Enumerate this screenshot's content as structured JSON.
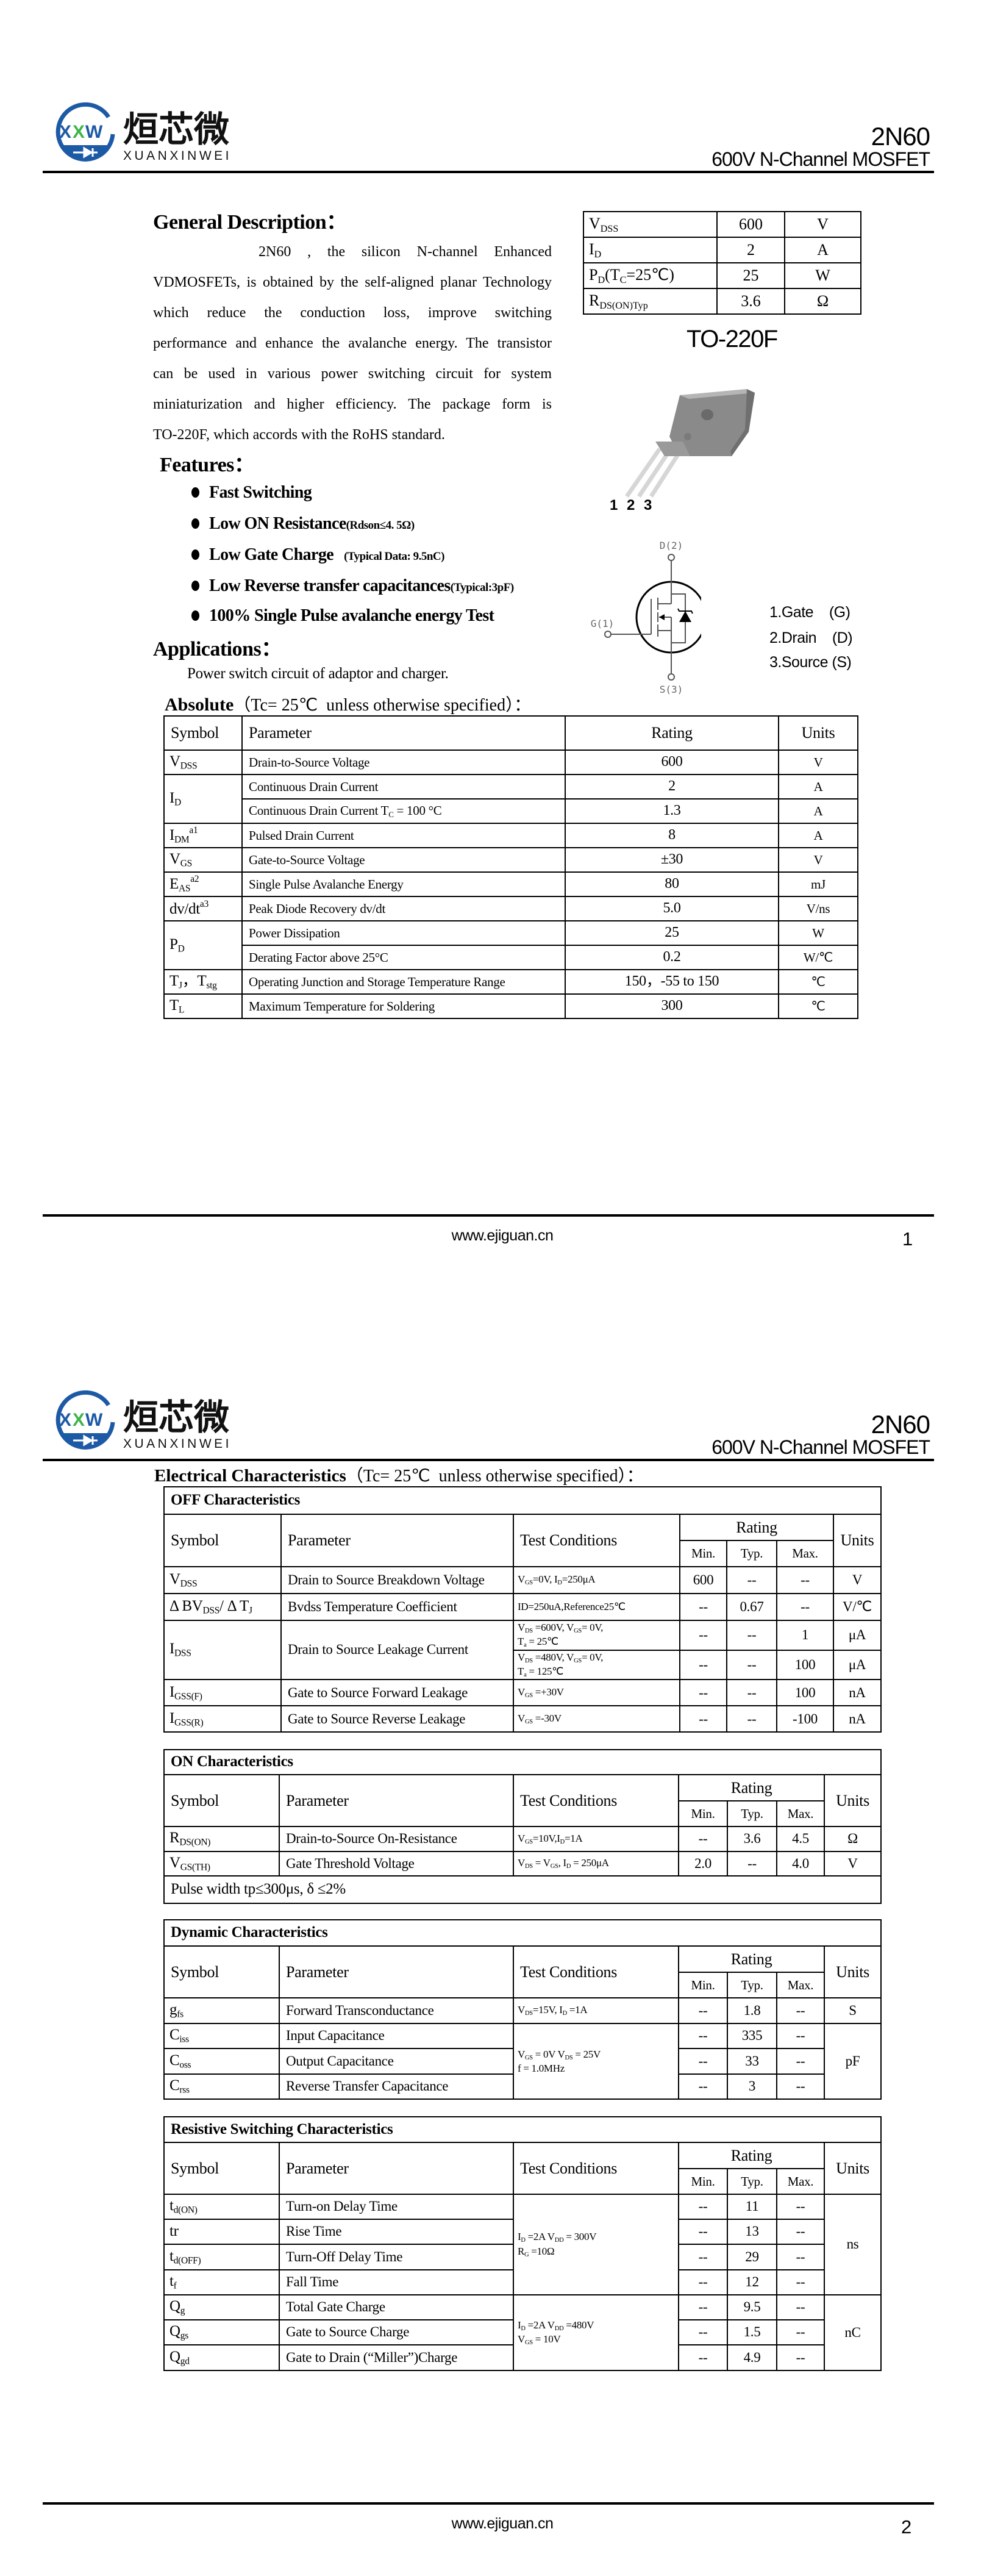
{
  "colors": {
    "brand_blue": "#1d5aa6",
    "brand_green": "#3cb54a",
    "package_grey": "#8a8a8a"
  },
  "header": {
    "logo_mark": [
      "X",
      "X",
      "W"
    ],
    "logo_cn": "烜芯微",
    "logo_en": "XUANXINWEI",
    "part": "2N60",
    "subtitle": "600V N-Channel MOSFET"
  },
  "page1": {
    "general": {
      "title": "General Description：",
      "lines": [
        "2N60  ,  the  silicon  N-channel  Enhanced",
        "VDMOSFETs, is obtained by the self-aligned planar Technology",
        "which reduce the conduction loss, improve switching",
        "performance and enhance the avalanche energy. The transistor",
        "can be used in various power switching circuit for system",
        "miniaturization and higher efficiency. The package form is",
        "TO-220F, which accords with the RoHS standard."
      ]
    },
    "spec": [
      {
        "sym": "V",
        "sub": "DSS",
        "tail": "",
        "sub2": "",
        "tail2": "",
        "value": "600",
        "unit": "V"
      },
      {
        "sym": "I",
        "sub": "D",
        "tail": "",
        "sub2": "",
        "tail2": "",
        "value": "2",
        "unit": "A"
      },
      {
        "sym": "P",
        "sub": "D",
        "tail": "(T",
        "sub2": "C",
        "tail2": "=25℃)",
        "value": "25",
        "unit": "W"
      },
      {
        "sym": "R",
        "sub": "DS(ON)Typ",
        "tail": "",
        "sub2": "",
        "tail2": "",
        "value": "3.6",
        "unit": "Ω"
      }
    ],
    "package": {
      "name": "TO-220F",
      "pins": "1 2 3"
    },
    "symbol": {
      "drain": "D(2)",
      "gate": "G(1)",
      "source": "S(3)"
    },
    "pin_legend": [
      "1.Gate    (G)",
      "2.Drain    (D)",
      "3.Source (S)"
    ],
    "features": {
      "title": "Features：",
      "items": [
        {
          "main": "Fast Switching",
          "note": ""
        },
        {
          "main": "Low ON Resistance",
          "note": "(Rdson≤4. 5Ω)"
        },
        {
          "main": "Low Gate Charge",
          "note": "    (Typical Data: 9.5nC)"
        },
        {
          "main": "Low Reverse transfer capacitances",
          "note": "(Typical:3pF)"
        },
        {
          "main": "100% Single Pulse avalanche energy Test",
          "note": ""
        }
      ]
    },
    "applications": {
      "title": "Applications：",
      "text": "Power switch circuit of adaptor and charger."
    },
    "absolute": {
      "title_bold": "Absolute",
      "title_rest": "（Tc= 25℃  unless otherwise specified）：",
      "headers": [
        "Symbol",
        "Parameter",
        "Rating",
        "Units"
      ],
      "rows": [
        [
          [
            {
              "t": "V"
            },
            {
              "t": "DSS",
              "sub": 1
            }
          ],
          "Drain-to-Source Voltage",
          "600",
          "V"
        ],
        [
          {
            "v": [
              {
                "t": "I"
              },
              {
                "t": "D",
                "sub": 1
              }
            ],
            "rs": 2
          },
          "Continuous Drain Current",
          "2",
          "A"
        ],
        [
          [
            {
              "t": "Continuous Drain Current T"
            },
            {
              "t": "C",
              "sub": 1
            },
            {
              "t": " = 100 °C"
            }
          ],
          "1.3",
          "A"
        ],
        [
          [
            {
              "t": "I"
            },
            {
              "t": "DM",
              "sub": 1
            },
            {
              "t": "a1",
              "sup": 1
            }
          ],
          "Pulsed Drain Current",
          "8",
          "A"
        ],
        [
          [
            {
              "t": "V"
            },
            {
              "t": "GS",
              "sub": 1
            }
          ],
          "Gate-to-Source Voltage",
          "±30",
          "V"
        ],
        [
          [
            {
              "t": "E"
            },
            {
              "t": "AS",
              "sub": 1
            },
            {
              "t": "a2",
              "sup": 1
            }
          ],
          "Single Pulse Avalanche Energy",
          "80",
          "mJ"
        ],
        [
          [
            {
              "t": "dv/dt"
            },
            {
              "t": "a3",
              "sup": 1
            }
          ],
          "Peak Diode Recovery dv/dt",
          "5.0",
          "V/ns"
        ],
        [
          {
            "v": [
              {
                "t": "P"
              },
              {
                "t": "D",
                "sub": 1
              }
            ],
            "rs": 2
          },
          "Power Dissipation",
          "25",
          "W"
        ],
        [
          "Derating Factor above 25°C",
          "0.2",
          "W/℃"
        ],
        [
          [
            {
              "t": "T"
            },
            {
              "t": "J",
              "sub": 1
            },
            {
              "t": "，T"
            },
            {
              "t": "stg",
              "sub": 1
            }
          ],
          "Operating Junction and Storage Temperature Range",
          "150，-55 to 150",
          "℃"
        ],
        [
          [
            {
              "t": "T"
            },
            {
              "t": "L",
              "sub": 1
            }
          ],
          "Maximum Temperature for Soldering",
          "300",
          "℃"
        ]
      ]
    },
    "footer": {
      "url": "www.ejiguan.cn",
      "page": "1"
    }
  },
  "page2": {
    "title_bold": "Electrical Characteristics",
    "title_rest": "（Tc= 25℃  unless otherwise specified）：",
    "tables": [
      {
        "title": "OFF Characteristics",
        "headers": {
          "symbol": "Symbol",
          "parameter": "Parameter",
          "test": "Test Conditions",
          "rating": "Rating",
          "min": "Min.",
          "typ": "Typ.",
          "max": "Max.",
          "unit": "Units"
        },
        "rows": [
          [
            [
              {
                "t": "V"
              },
              {
                "t": "DSS",
                "sub": 1
              }
            ],
            "Drain to Source Breakdown Voltage",
            [
              {
                "t": "V"
              },
              {
                "t": "GS",
                "sub": 1
              },
              {
                "t": "=0V, I"
              },
              {
                "t": "D",
                "sub": 1
              },
              {
                "t": "=250μA"
              }
            ],
            "600",
            "--",
            "--",
            "V"
          ],
          [
            [
              {
                "t": "Δ BV"
              },
              {
                "t": "DSS",
                "sub": 1
              },
              {
                "t": "/ Δ T"
              },
              {
                "t": "J",
                "sub": 1
              }
            ],
            "Bvdss Temperature Coefficient",
            "ID=250uA,Reference25℃",
            "--",
            "0.67",
            "--",
            "V/℃"
          ],
          [
            {
              "v": [
                {
                  "t": "I"
                },
                {
                  "t": "DSS",
                  "sub": 1
                }
              ],
              "rs": 2
            },
            {
              "v": "Drain to Source Leakage Current",
              "rs": 2
            },
            [
              {
                "t": "V"
              },
              {
                "t": "DS",
                "sub": 1
              },
              {
                "t": " =600V, V"
              },
              {
                "t": "GS",
                "sub": 1
              },
              {
                "t": "= 0V,"
              },
              {
                "br": 1
              },
              {
                "t": "T"
              },
              {
                "t": "a",
                "sub": 1
              },
              {
                "t": " = 25℃"
              }
            ],
            "--",
            "--",
            "1",
            "μA"
          ],
          [
            [
              {
                "t": "V"
              },
              {
                "t": "DS",
                "sub": 1
              },
              {
                "t": " =480V, V"
              },
              {
                "t": "GS",
                "sub": 1
              },
              {
                "t": "= 0V,"
              },
              {
                "br": 1
              },
              {
                "t": "T"
              },
              {
                "t": "a",
                "sub": 1
              },
              {
                "t": " = 125℃"
              }
            ],
            "--",
            "--",
            "100",
            "μA"
          ],
          [
            [
              {
                "t": "I"
              },
              {
                "t": "GSS(F)",
                "sub": 1
              }
            ],
            "Gate to Source Forward Leakage",
            [
              {
                "t": "V"
              },
              {
                "t": "GS",
                "sub": 1
              },
              {
                "t": " =+30V"
              }
            ],
            "--",
            "--",
            "100",
            "nA"
          ],
          [
            [
              {
                "t": "I"
              },
              {
                "t": "GSS(R)",
                "sub": 1
              }
            ],
            "Gate to Source Reverse Leakage",
            [
              {
                "t": "V"
              },
              {
                "t": "GS",
                "sub": 1
              },
              {
                "t": " =-30V"
              }
            ],
            "--",
            "--",
            "-100",
            "nA"
          ]
        ]
      },
      {
        "title": "ON Characteristics",
        "headers": {
          "symbol": "Symbol",
          "parameter": "Parameter",
          "test": "Test Conditions",
          "rating": "Rating",
          "min": "Min.",
          "typ": "Typ.",
          "max": "Max.",
          "unit": "Units"
        },
        "rows": [
          [
            [
              {
                "t": "R"
              },
              {
                "t": "DS(ON)",
                "sub": 1
              }
            ],
            "Drain-to-Source On-Resistance",
            [
              {
                "t": "V"
              },
              {
                "t": "GS",
                "sub": 1
              },
              {
                "t": "=10V,I"
              },
              {
                "t": "D",
                "sub": 1
              },
              {
                "t": "=1A"
              }
            ],
            "--",
            "3.6",
            "4.5",
            "Ω"
          ],
          [
            [
              {
                "t": "V"
              },
              {
                "t": "GS(TH)",
                "sub": 1
              }
            ],
            "Gate Threshold Voltage",
            [
              {
                "t": "V"
              },
              {
                "t": "DS",
                "sub": 1
              },
              {
                "t": " = V"
              },
              {
                "t": "GS",
                "sub": 1
              },
              {
                "t": ", I"
              },
              {
                "t": "D",
                "sub": 1
              },
              {
                "t": " = 250μA"
              }
            ],
            "2.0",
            "--",
            "4.0",
            "V"
          ],
          [
            {
              "v": "Pulse width tp≤300μs, δ ≤2%",
              "cs": 7,
              "note": 1
            }
          ]
        ]
      },
      {
        "title": "Dynamic Characteristics",
        "headers": {
          "symbol": "Symbol",
          "parameter": "Parameter",
          "test": "Test Conditions",
          "rating": "Rating",
          "min": "Min.",
          "typ": "Typ.",
          "max": "Max.",
          "unit": "Units"
        },
        "rows": [
          [
            [
              {
                "t": "g"
              },
              {
                "t": "fs",
                "sub": 1
              }
            ],
            "Forward Transconductance",
            [
              {
                "t": "V"
              },
              {
                "t": "DS",
                "sub": 1
              },
              {
                "t": "=15V, I"
              },
              {
                "t": "D",
                "sub": 1
              },
              {
                "t": " =1A"
              }
            ],
            "--",
            "1.8",
            "--",
            "S"
          ],
          [
            [
              {
                "t": "C"
              },
              {
                "t": "iss",
                "sub": 1
              }
            ],
            "Input Capacitance",
            {
              "v": [
                {
                  "t": "V"
                },
                {
                  "t": "GS",
                  "sub": 1
                },
                {
                  "t": " = 0V V"
                },
                {
                  "t": "DS",
                  "sub": 1
                },
                {
                  "t": " = 25V"
                },
                {
                  "br": 1
                },
                {
                  "t": "f = 1.0MHz"
                }
              ],
              "rs": 3
            },
            "--",
            "335",
            "--",
            {
              "v": "pF",
              "rs": 3
            }
          ],
          [
            [
              {
                "t": "C"
              },
              {
                "t": "oss",
                "sub": 1
              }
            ],
            "Output Capacitance",
            "--",
            "33",
            "--"
          ],
          [
            [
              {
                "t": "C"
              },
              {
                "t": "rss",
                "sub": 1
              }
            ],
            "Reverse Transfer Capacitance",
            "--",
            "3",
            "--"
          ]
        ]
      },
      {
        "title": "Resistive Switching Characteristics",
        "headers": {
          "symbol": "Symbol",
          "parameter": "Parameter",
          "test": "Test Conditions",
          "rating": "Rating",
          "min": "Min.",
          "typ": "Typ.",
          "max": "Max.",
          "unit": "Units"
        },
        "rows": [
          [
            [
              {
                "t": "t"
              },
              {
                "t": "d(ON)",
                "sub": 1
              }
            ],
            "Turn-on Delay Time",
            {
              "v": [
                {
                  "t": "I"
                },
                {
                  "t": "D",
                  "sub": 1
                },
                {
                  "t": " =2A    V"
                },
                {
                  "t": "DD",
                  "sub": 1
                },
                {
                  "t": " = 300V"
                },
                {
                  "br": 1
                },
                {
                  "t": "R"
                },
                {
                  "t": "G",
                  "sub": 1
                },
                {
                  "t": " =10Ω"
                }
              ],
              "rs": 4
            },
            "--",
            "11",
            "--",
            {
              "v": "ns",
              "rs": 4
            }
          ],
          [
            "tr",
            "Rise Time",
            "--",
            "13",
            "--"
          ],
          [
            [
              {
                "t": "t"
              },
              {
                "t": "d(OFF)",
                "sub": 1
              }
            ],
            "Turn-Off Delay Time",
            "--",
            "29",
            "--"
          ],
          [
            [
              {
                "t": "t"
              },
              {
                "t": "f",
                "sub": 1
              }
            ],
            "Fall Time",
            "--",
            "12",
            "--"
          ],
          [
            [
              {
                "t": "Q"
              },
              {
                "t": "g",
                "sub": 1
              }
            ],
            "Total Gate Charge",
            {
              "v": [
                {
                  "t": "I"
                },
                {
                  "t": "D",
                  "sub": 1
                },
                {
                  "t": " =2A    V"
                },
                {
                  "t": "DD",
                  "sub": 1
                },
                {
                  "t": " =480V"
                },
                {
                  "br": 1
                },
                {
                  "t": "V"
                },
                {
                  "t": "GS",
                  "sub": 1
                },
                {
                  "t": " = 10V"
                }
              ],
              "rs": 3
            },
            "--",
            "9.5",
            "--",
            {
              "v": "nC",
              "rs": 3
            }
          ],
          [
            [
              {
                "t": "Q"
              },
              {
                "t": "gs",
                "sub": 1
              }
            ],
            "Gate to Source Charge",
            "--",
            "1.5",
            "--"
          ],
          [
            [
              {
                "t": "Q"
              },
              {
                "t": "gd",
                "sub": 1
              }
            ],
            "Gate to Drain (“Miller”)Charge",
            "--",
            "4.9",
            "--"
          ]
        ]
      }
    ],
    "footer": {
      "url": "www.ejiguan.cn",
      "page": "2"
    }
  }
}
